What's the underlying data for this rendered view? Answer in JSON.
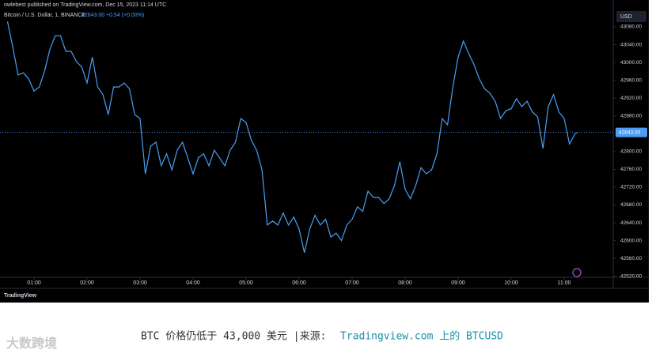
{
  "header": {
    "publisher": "owlebest published on TradingView.com, Dec 15, 2023 11:14 UTC"
  },
  "chart_data": {
    "type": "line",
    "title": "Bitcoin / U.S. Dollar, 1, BINANCE",
    "last_price": {
      "value": 42843,
      "label": "42843.00"
    },
    "change": "+0.54 (+0.00%)",
    "currency": "USD",
    "color": "#4a9ff5",
    "x": [
      0.5,
      0.6,
      0.7,
      0.8,
      0.9,
      1.0,
      1.1,
      1.2,
      1.3,
      1.4,
      1.5,
      1.6,
      1.7,
      1.8,
      1.9,
      2.0,
      2.1,
      2.2,
      2.3,
      2.4,
      2.5,
      2.6,
      2.7,
      2.8,
      2.9,
      3.0,
      3.1,
      3.2,
      3.3,
      3.4,
      3.5,
      3.6,
      3.7,
      3.8,
      3.9,
      4.0,
      4.1,
      4.2,
      4.3,
      4.4,
      4.5,
      4.6,
      4.7,
      4.8,
      4.9,
      5.0,
      5.1,
      5.2,
      5.3,
      5.4,
      5.5,
      5.6,
      5.7,
      5.8,
      5.9,
      6.0,
      6.1,
      6.2,
      6.3,
      6.4,
      6.5,
      6.6,
      6.7,
      6.8,
      6.9,
      7.0,
      7.1,
      7.2,
      7.3,
      7.4,
      7.5,
      7.6,
      7.7,
      7.8,
      7.9,
      8.0,
      8.1,
      8.2,
      8.3,
      8.4,
      8.5,
      8.6,
      8.7,
      8.8,
      8.9,
      9.0,
      9.1,
      9.2,
      9.3,
      9.4,
      9.5,
      9.6,
      9.7,
      9.8,
      9.9,
      10.0,
      10.1,
      10.2,
      10.3,
      10.4,
      10.5,
      10.6,
      10.7,
      10.8,
      10.9,
      11.0,
      11.1,
      11.2,
      11.25
    ],
    "values": [
      43092,
      43034,
      42972,
      42977,
      42963,
      42936,
      42945,
      42981,
      43030,
      43060,
      43060,
      43025,
      43025,
      43002,
      42990,
      42954,
      43012,
      42945,
      42928,
      42883,
      42945,
      42945,
      42954,
      42941,
      42883,
      42874,
      42750,
      42812,
      42821,
      42768,
      42795,
      42759,
      42803,
      42821,
      42786,
      42750,
      42786,
      42795,
      42768,
      42803,
      42786,
      42768,
      42803,
      42821,
      42874,
      42865,
      42825,
      42803,
      42759,
      42635,
      42644,
      42635,
      42662,
      42635,
      42653,
      42626,
      42573,
      42626,
      42657,
      42635,
      42648,
      42608,
      42617,
      42600,
      42635,
      42648,
      42676,
      42666,
      42711,
      42697,
      42697,
      42683,
      42694,
      42724,
      42777,
      42715,
      42694,
      42724,
      42764,
      42750,
      42759,
      42795,
      42874,
      42860,
      42945,
      43012,
      43048,
      43020,
      42995,
      42963,
      42941,
      42931,
      42913,
      42874,
      42892,
      42896,
      42919,
      42901,
      42913,
      42889,
      42878,
      42807,
      42901,
      42928,
      42889,
      42874,
      42817,
      42839,
      42843
    ],
    "xlim": [
      0.358,
      11.925
    ],
    "ylim": [
      42516,
      43119
    ],
    "xticks": [
      {
        "value": 1,
        "label": "01:00"
      },
      {
        "value": 2,
        "label": "02:00"
      },
      {
        "value": 3,
        "label": "03:00"
      },
      {
        "value": 4,
        "label": "04:00"
      },
      {
        "value": 5,
        "label": "05:00"
      },
      {
        "value": 6,
        "label": "06:00"
      },
      {
        "value": 7,
        "label": "07:00"
      },
      {
        "value": 8,
        "label": "08:00"
      },
      {
        "value": 9,
        "label": "09:00"
      },
      {
        "value": 10,
        "label": "10:00"
      },
      {
        "value": 11,
        "label": "11:00"
      }
    ],
    "yticks": [
      {
        "value": 43080,
        "label": "43080.00"
      },
      {
        "value": 43040,
        "label": "43040.00"
      },
      {
        "value": 43000,
        "label": "43000.00"
      },
      {
        "value": 42960,
        "label": "42960.00"
      },
      {
        "value": 42920,
        "label": "42920.00"
      },
      {
        "value": 42880,
        "label": "42880.00"
      },
      {
        "value": 42800,
        "label": "42800.00"
      },
      {
        "value": 42760,
        "label": "42760.00"
      },
      {
        "value": 42720,
        "label": "42720.00"
      },
      {
        "value": 42680,
        "label": "42680.00"
      },
      {
        "value": 42640,
        "label": "42640.00"
      },
      {
        "value": 42600,
        "label": "42600.00"
      },
      {
        "value": 42560,
        "label": "42560.00"
      },
      {
        "value": 42520,
        "label": "42520.00"
      }
    ]
  },
  "footer_logo": "TradingView",
  "caption": {
    "text": "BTC 价格仍低于 43,000 美元 |来源:",
    "link": "Tradingview.com 上的 BTCUSD"
  },
  "watermark": "大数跨境"
}
